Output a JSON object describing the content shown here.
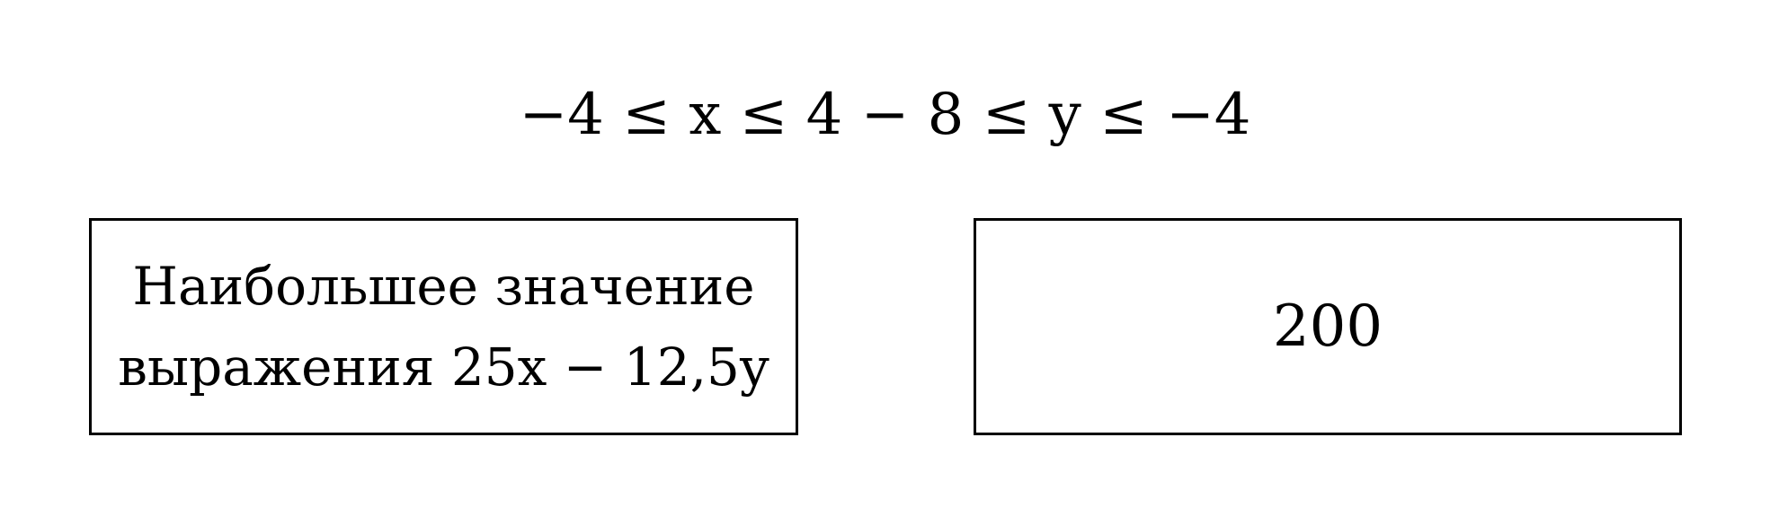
{
  "condition": {
    "text": "−4 ≤ x ≤ 4 − 8 ≤ y ≤ −4"
  },
  "question": {
    "line1": "Наибольшее значение",
    "line2": "выражения 25x − 12,5y"
  },
  "answer": {
    "value": "200"
  }
}
